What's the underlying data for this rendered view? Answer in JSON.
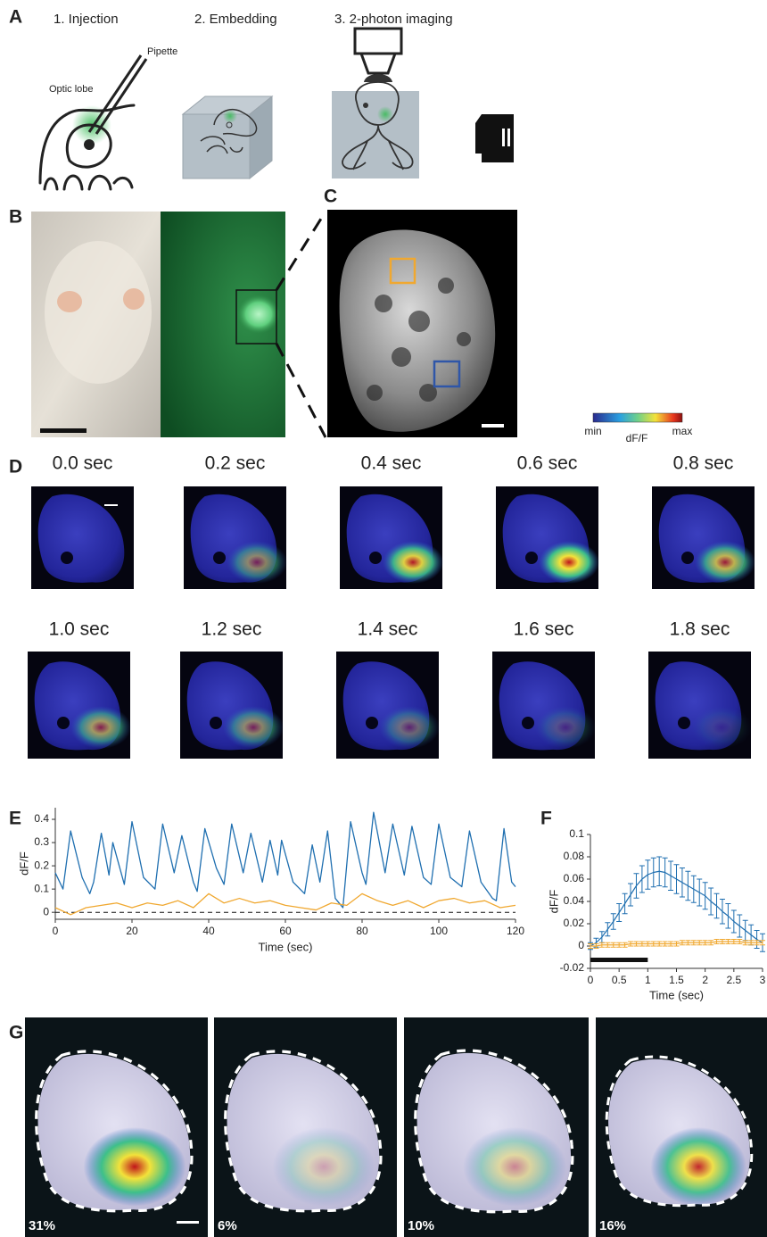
{
  "panel_labels": [
    "A",
    "B",
    "C",
    "D",
    "E",
    "F",
    "G"
  ],
  "panel_a": {
    "steps": [
      "1. Injection",
      "2. Embedding",
      "3. 2-photon imaging"
    ],
    "annotations": [
      "Pipette",
      "Optic lobe"
    ]
  },
  "colorbar": {
    "min": "min",
    "label": "dF/F",
    "max": "max"
  },
  "panel_d": {
    "times": [
      "0.0 sec",
      "0.2 sec",
      "0.4 sec",
      "0.6 sec",
      "0.8 sec",
      "1.0 sec",
      "1.2 sec",
      "1.4 sec",
      "1.6 sec",
      "1.8 sec"
    ]
  },
  "panel_g": {
    "percentages": [
      "31%",
      "6%",
      "10%",
      "16%"
    ]
  },
  "chart_data": [
    {
      "type": "line",
      "xlabel": "Time (sec)",
      "ylabel": "dF/F",
      "xlim": [
        0,
        120
      ],
      "xticks": [
        0,
        20,
        40,
        60,
        80,
        100,
        120
      ],
      "ylim": [
        -0.03,
        0.45
      ],
      "yticks": [
        0,
        0.1,
        0.2,
        0.3,
        0.4
      ],
      "series": [
        {
          "color": "#1f6fb0",
          "x": [
            0,
            2,
            4,
            7,
            9,
            10,
            12,
            14,
            15,
            18,
            20,
            23,
            26,
            28,
            31,
            33,
            36,
            37,
            39,
            42,
            44,
            46,
            49,
            51,
            54,
            56,
            58,
            59,
            62,
            65,
            67,
            69,
            71,
            73,
            75,
            77,
            80,
            81,
            83,
            86,
            88,
            91,
            93,
            96,
            98,
            100,
            103,
            106,
            108,
            111,
            114,
            115,
            117,
            119,
            120
          ],
          "values": [
            0.17,
            0.1,
            0.35,
            0.15,
            0.08,
            0.13,
            0.34,
            0.16,
            0.3,
            0.12,
            0.39,
            0.15,
            0.1,
            0.38,
            0.17,
            0.33,
            0.13,
            0.09,
            0.36,
            0.19,
            0.12,
            0.38,
            0.17,
            0.34,
            0.13,
            0.31,
            0.16,
            0.31,
            0.13,
            0.08,
            0.29,
            0.13,
            0.35,
            0.06,
            0.02,
            0.39,
            0.17,
            0.12,
            0.43,
            0.17,
            0.38,
            0.16,
            0.37,
            0.15,
            0.12,
            0.38,
            0.15,
            0.11,
            0.35,
            0.13,
            0.06,
            0.05,
            0.36,
            0.13,
            0.11
          ]
        },
        {
          "color": "#f0a830",
          "x": [
            0,
            4,
            8,
            12,
            16,
            20,
            24,
            28,
            32,
            36,
            40,
            44,
            48,
            52,
            56,
            60,
            64,
            68,
            72,
            76,
            80,
            84,
            88,
            92,
            96,
            100,
            104,
            108,
            112,
            116,
            120
          ],
          "values": [
            0.02,
            -0.01,
            0.02,
            0.03,
            0.04,
            0.02,
            0.04,
            0.03,
            0.05,
            0.02,
            0.08,
            0.04,
            0.06,
            0.04,
            0.05,
            0.03,
            0.02,
            0.01,
            0.04,
            0.03,
            0.08,
            0.05,
            0.03,
            0.05,
            0.02,
            0.05,
            0.06,
            0.04,
            0.05,
            0.02,
            0.03
          ]
        }
      ]
    },
    {
      "type": "line",
      "xlabel": "Time (sec)",
      "ylabel": "dF/F",
      "xlim": [
        0,
        3
      ],
      "xticks": [
        0,
        0.5,
        1,
        1.5,
        2,
        2.5,
        3
      ],
      "ylim": [
        -0.02,
        0.1
      ],
      "yticks": [
        -0.02,
        0,
        0.02,
        0.04,
        0.06,
        0.08,
        0.1
      ],
      "stimulus": [
        0,
        1
      ],
      "series": [
        {
          "color": "#1f6fb0",
          "x": [
            0,
            0.1,
            0.2,
            0.3,
            0.4,
            0.5,
            0.6,
            0.7,
            0.8,
            0.9,
            1,
            1.1,
            1.2,
            1.3,
            1.4,
            1.5,
            1.6,
            1.7,
            1.8,
            1.9,
            2,
            2.1,
            2.2,
            2.3,
            2.4,
            2.5,
            2.6,
            2.7,
            2.8,
            2.9,
            3
          ],
          "values": [
            0,
            0.003,
            0.008,
            0.015,
            0.022,
            0.03,
            0.038,
            0.046,
            0.054,
            0.06,
            0.064,
            0.066,
            0.067,
            0.066,
            0.063,
            0.06,
            0.057,
            0.054,
            0.051,
            0.048,
            0.045,
            0.04,
            0.036,
            0.031,
            0.027,
            0.022,
            0.018,
            0.014,
            0.01,
            0.006,
            0.003
          ],
          "errors": [
            0.003,
            0.004,
            0.005,
            0.006,
            0.007,
            0.008,
            0.009,
            0.01,
            0.011,
            0.012,
            0.013,
            0.013,
            0.013,
            0.013,
            0.013,
            0.013,
            0.013,
            0.013,
            0.012,
            0.012,
            0.012,
            0.012,
            0.011,
            0.011,
            0.011,
            0.01,
            0.01,
            0.009,
            0.009,
            0.008,
            0.008
          ]
        },
        {
          "color": "#f0a830",
          "x": [
            0,
            0.1,
            0.2,
            0.3,
            0.4,
            0.5,
            0.6,
            0.7,
            0.8,
            0.9,
            1,
            1.1,
            1.2,
            1.3,
            1.4,
            1.5,
            1.6,
            1.7,
            1.8,
            1.9,
            2,
            2.1,
            2.2,
            2.3,
            2.4,
            2.5,
            2.6,
            2.7,
            2.8,
            2.9,
            3
          ],
          "values": [
            0,
            0,
            0.001,
            0.001,
            0.001,
            0.001,
            0.001,
            0.002,
            0.002,
            0.002,
            0.002,
            0.002,
            0.002,
            0.002,
            0.002,
            0.002,
            0.003,
            0.003,
            0.003,
            0.003,
            0.003,
            0.003,
            0.004,
            0.004,
            0.004,
            0.004,
            0.004,
            0.003,
            0.003,
            0.003,
            0.003
          ],
          "errors": [
            0.002,
            0.002,
            0.002,
            0.002,
            0.002,
            0.002,
            0.002,
            0.002,
            0.002,
            0.002,
            0.002,
            0.002,
            0.002,
            0.002,
            0.002,
            0.002,
            0.002,
            0.002,
            0.002,
            0.002,
            0.002,
            0.002,
            0.002,
            0.002,
            0.002,
            0.002,
            0.002,
            0.002,
            0.002,
            0.002,
            0.002
          ]
        }
      ]
    }
  ]
}
